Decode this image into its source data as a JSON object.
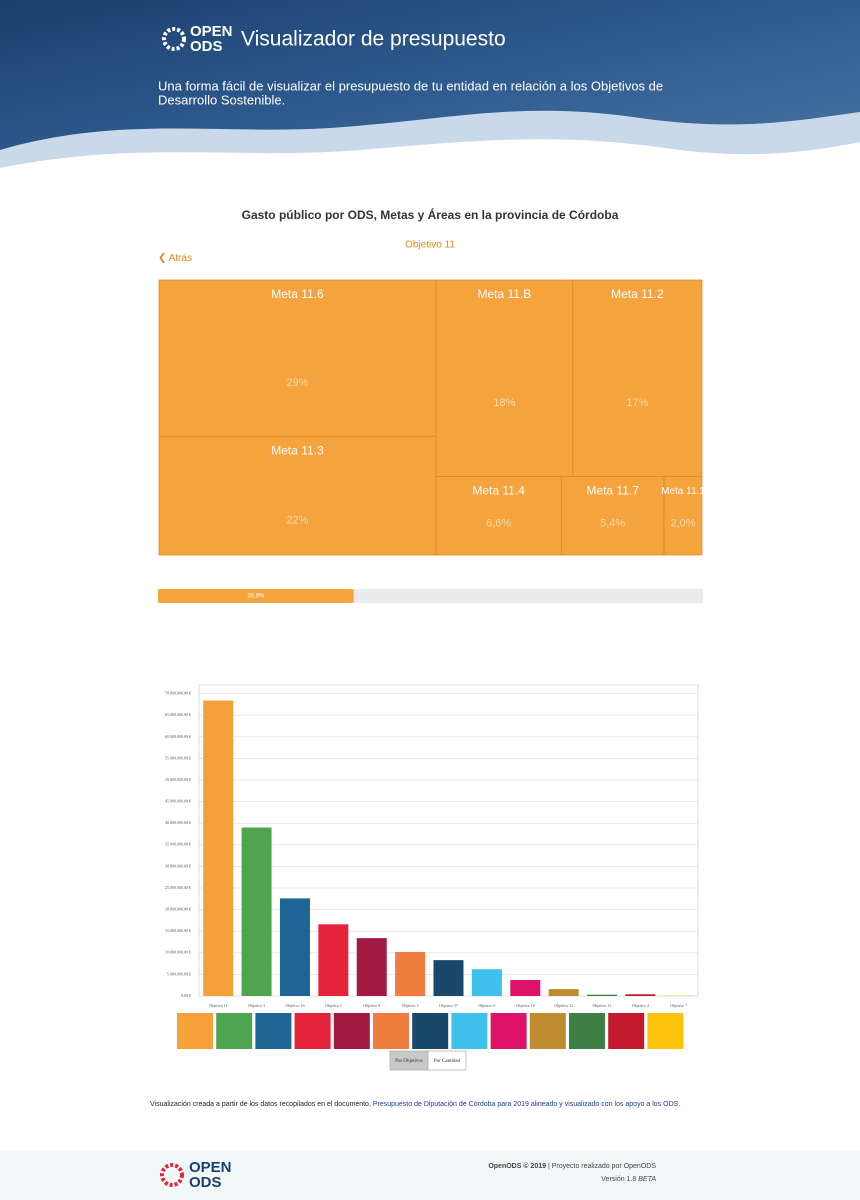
{
  "header": {
    "logo_top": "OPEN",
    "logo_bottom": "ODS",
    "title": "Visualizador de presupuesto",
    "subtitle_lines": [
      "Una forma fácil de visualizar el presupuesto de tu entidad en relación a los Objetivos de",
      "Desarrollo Sostenible."
    ]
  },
  "chart_data": [
    {
      "type": "treemap",
      "title": "Gasto público por ODS, Metas y Áreas en la provincia de Córdoba",
      "subtitle": "Objetivo 11",
      "back": "Atrás",
      "categories": [
        "Meta 11.6",
        "Meta 11.3",
        "Meta 11.B",
        "Meta 11.2",
        "Meta 11.4",
        "Meta 11.7",
        "Meta 11.1"
      ],
      "values": [
        29,
        22,
        18,
        17,
        6.6,
        5.4,
        2.0
      ],
      "value_labels": [
        "29%",
        "22%",
        "18%",
        "17%",
        "6,6%",
        "5,4%",
        "2,0%"
      ],
      "color": "#f5a33c"
    },
    {
      "type": "progress",
      "values": [
        35.9
      ],
      "value_labels": [
        "35,9%"
      ],
      "xlim": [
        0,
        100
      ],
      "color": "#f5a33c"
    },
    {
      "type": "bar",
      "categories": [
        "Objetivo 11",
        "Objetivo 3",
        "Objetivo 16",
        "Objetivo 1",
        "Objetivo 8",
        "Objetivo 5",
        "Objetivo 17",
        "Objetivo 6",
        "Objetivo 10",
        "Objetivo 12",
        "Objetivo 13",
        "Objetivo 4",
        "Objetivo 7"
      ],
      "values": [
        68400000,
        39000000,
        22600000,
        16600000,
        13400000,
        10200000,
        8300000,
        6200000,
        3700000,
        1600000,
        300000,
        400000,
        100000
      ],
      "colors": [
        "#f5a13a",
        "#4ea44f",
        "#1e6596",
        "#e5243b",
        "#a21942",
        "#ef7d3f",
        "#19486a",
        "#3dc0ec",
        "#dd1367",
        "#bf8b2e",
        "#3f7e44",
        "#c5192d",
        "#fcc30b"
      ],
      "ylim": [
        0,
        72000000
      ],
      "yticks": [
        {
          "value": 0,
          "label": "0,00 €"
        },
        {
          "value": 5000000,
          "label": "5.000.000,00 €"
        },
        {
          "value": 10000000,
          "label": "10.000.000,00 €"
        },
        {
          "value": 15000000,
          "label": "15.000.000,00 €"
        },
        {
          "value": 20000000,
          "label": "20.000.000,00 €"
        },
        {
          "value": 25000000,
          "label": "25.000.000,00 €"
        },
        {
          "value": 30000000,
          "label": "30.000.000,00 €"
        },
        {
          "value": 35000000,
          "label": "35.000.000,00 €"
        },
        {
          "value": 40000000,
          "label": "40.000.000,00 €"
        },
        {
          "value": 45000000,
          "label": "45.000.000,00 €"
        },
        {
          "value": 50000000,
          "label": "50.000.000,00 €"
        },
        {
          "value": 55000000,
          "label": "55.000.000,00 €"
        },
        {
          "value": 60000000,
          "label": "60.000.000,00 €"
        },
        {
          "value": 65000000,
          "label": "65.000.000,00 €"
        },
        {
          "value": 70000000,
          "label": "70.000.000,00 €"
        }
      ],
      "grid": true,
      "buttons": [
        "Por Objetivos",
        "Por Cantidad"
      ]
    }
  ],
  "note": {
    "text": "Visualización creada a partir de los datos recopilados en el documento, ",
    "link": "Presupuesto de Diputación de Córdoba para 2019 alineado y visualizado con los apoyo a los ODS."
  },
  "footer": {
    "brand": "OpenODS © 2019",
    "credit": " | Proyecto realizado por OpenODS",
    "version": "Versión 1.8 ",
    "beta": "BETA"
  }
}
